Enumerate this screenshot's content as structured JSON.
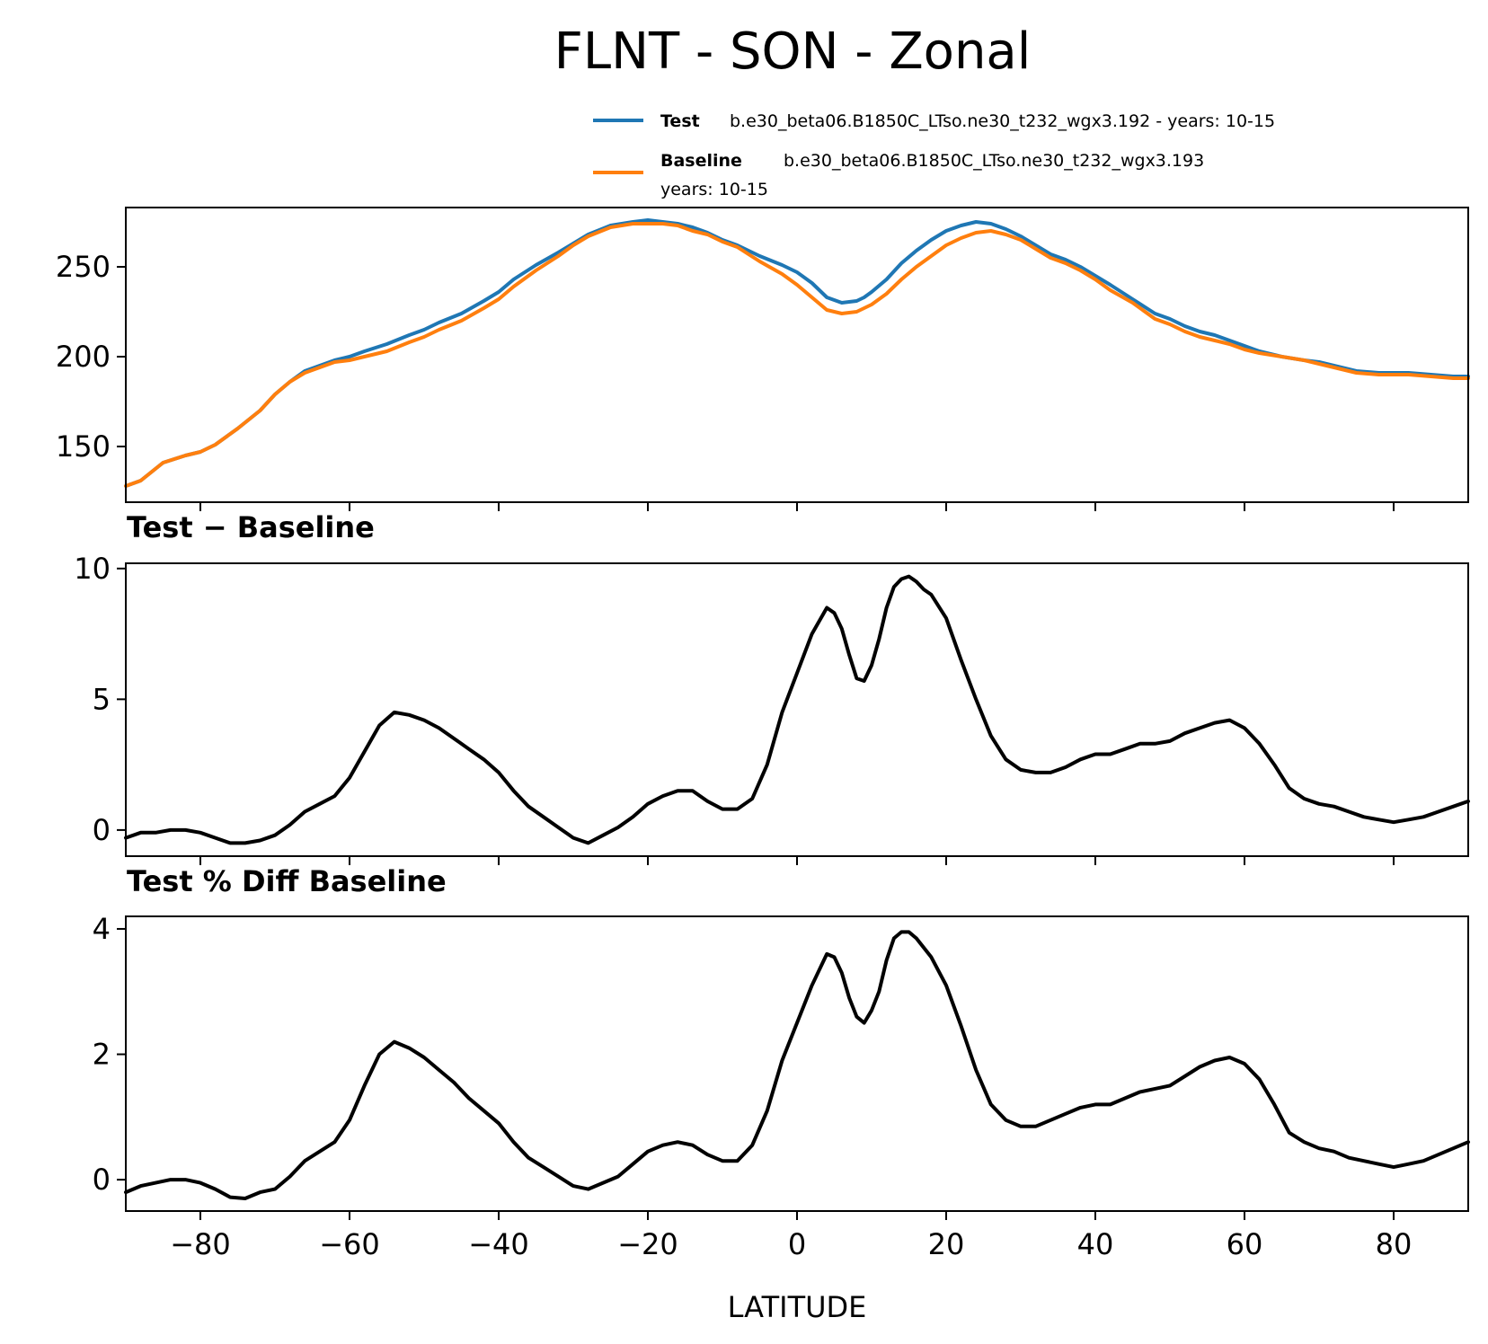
{
  "figure": {
    "title": "FLNT - SON - Zonal",
    "xlabel": "LATITUDE"
  },
  "legend": {
    "test_label": "Test",
    "test_text": "b.e30_beta06.B1850C_LTso.ne30_t232_wgx3.192 - years: 10-15",
    "baseline_label": "Baseline",
    "baseline_text_line1": "b.e30_beta06.B1850C_LTso.ne30_t232_wgx3.193",
    "baseline_text_line2": "years: 10-15"
  },
  "colors": {
    "test": "#1f77b4",
    "baseline": "#ff7f0e",
    "diff": "#000000"
  },
  "chart_data": [
    {
      "type": "line",
      "title": "",
      "xlabel": "",
      "ylabel": "",
      "xlim": [
        -90,
        90
      ],
      "ylim": [
        119,
        283
      ],
      "yticks": [
        150,
        200,
        250
      ],
      "xticks": [
        -80,
        -60,
        -40,
        -20,
        0,
        20,
        40,
        60,
        80
      ],
      "x": [
        -90,
        -88,
        -85,
        -82,
        -80,
        -78,
        -75,
        -72,
        -70,
        -68,
        -66,
        -64,
        -62,
        -60,
        -58,
        -55,
        -52,
        -50,
        -48,
        -45,
        -42,
        -40,
        -38,
        -35,
        -32,
        -30,
        -28,
        -25,
        -22,
        -20,
        -18,
        -16,
        -14,
        -12,
        -10,
        -8,
        -5,
        -2,
        0,
        2,
        4,
        6,
        8,
        9,
        10,
        12,
        14,
        16,
        18,
        20,
        22,
        24,
        26,
        28,
        30,
        32,
        34,
        36,
        38,
        40,
        42,
        45,
        48,
        50,
        52,
        54,
        56,
        58,
        60,
        62,
        65,
        68,
        70,
        72,
        75,
        78,
        80,
        82,
        85,
        88,
        90
      ],
      "series": [
        {
          "name": "Test",
          "color": "#1f77b4",
          "values": [
            128,
            131,
            141,
            145,
            147,
            151,
            160,
            170,
            179,
            186,
            192,
            195,
            198,
            200,
            203,
            207,
            212,
            215,
            219,
            224,
            231,
            236,
            243,
            251,
            258,
            263,
            268,
            273,
            275,
            276,
            275,
            274,
            272,
            269,
            265,
            262,
            256,
            251,
            247,
            241,
            233,
            230,
            231,
            233,
            236,
            243,
            252,
            259,
            265,
            270,
            273,
            275,
            274,
            271,
            267,
            262,
            257,
            254,
            250,
            245,
            240,
            232,
            224,
            221,
            217,
            214,
            212,
            209,
            206,
            203,
            200,
            198,
            197,
            195,
            192,
            191,
            191,
            191,
            190,
            189,
            189
          ]
        },
        {
          "name": "Baseline",
          "color": "#ff7f0e",
          "values": [
            128,
            131,
            141,
            145,
            147,
            151,
            160,
            170,
            179,
            186,
            191,
            194,
            197,
            198,
            200,
            203,
            208,
            211,
            215,
            220,
            227,
            232,
            239,
            248,
            256,
            262,
            267,
            272,
            274,
            274,
            274,
            273,
            270,
            268,
            264,
            261,
            253,
            246,
            240,
            233,
            226,
            224,
            225,
            227,
            229,
            235,
            243,
            250,
            256,
            262,
            266,
            269,
            270,
            268,
            265,
            260,
            255,
            252,
            248,
            243,
            237,
            230,
            221,
            218,
            214,
            211,
            209,
            207,
            204,
            202,
            200,
            198,
            196,
            194,
            191,
            190,
            190,
            190,
            189,
            188,
            188
          ]
        }
      ]
    },
    {
      "type": "line",
      "title": "Test − Baseline",
      "xlabel": "",
      "ylabel": "",
      "xlim": [
        -90,
        90
      ],
      "ylim": [
        -1,
        10.2
      ],
      "yticks": [
        0,
        5,
        10
      ],
      "xticks": [
        -80,
        -60,
        -40,
        -20,
        0,
        20,
        40,
        60,
        80
      ],
      "x": [
        -90,
        -88,
        -86,
        -84,
        -82,
        -80,
        -78,
        -76,
        -74,
        -72,
        -70,
        -68,
        -66,
        -64,
        -62,
        -60,
        -58,
        -56,
        -54,
        -52,
        -50,
        -48,
        -46,
        -44,
        -42,
        -40,
        -38,
        -36,
        -34,
        -32,
        -30,
        -28,
        -26,
        -24,
        -22,
        -20,
        -18,
        -16,
        -14,
        -12,
        -10,
        -8,
        -6,
        -4,
        -2,
        0,
        2,
        4,
        5,
        6,
        7,
        8,
        9,
        10,
        11,
        12,
        13,
        14,
        15,
        16,
        17,
        18,
        20,
        22,
        24,
        26,
        28,
        30,
        32,
        34,
        36,
        38,
        40,
        42,
        44,
        46,
        48,
        50,
        52,
        54,
        56,
        58,
        60,
        62,
        64,
        66,
        68,
        70,
        72,
        74,
        76,
        78,
        80,
        82,
        84,
        86,
        88,
        90
      ],
      "series": [
        {
          "name": "Test − Baseline",
          "color": "#000000",
          "values": [
            -0.3,
            -0.1,
            -0.1,
            0.0,
            0.0,
            -0.1,
            -0.3,
            -0.5,
            -0.5,
            -0.4,
            -0.2,
            0.2,
            0.7,
            1.0,
            1.3,
            2.0,
            3.0,
            4.0,
            4.5,
            4.4,
            4.2,
            3.9,
            3.5,
            3.1,
            2.7,
            2.2,
            1.5,
            0.9,
            0.5,
            0.1,
            -0.3,
            -0.5,
            -0.2,
            0.1,
            0.5,
            1.0,
            1.3,
            1.5,
            1.5,
            1.1,
            0.8,
            0.8,
            1.2,
            2.5,
            4.5,
            6.0,
            7.5,
            8.5,
            8.3,
            7.7,
            6.7,
            5.8,
            5.7,
            6.3,
            7.3,
            8.5,
            9.3,
            9.6,
            9.7,
            9.5,
            9.2,
            9.0,
            8.1,
            6.5,
            5.0,
            3.6,
            2.7,
            2.3,
            2.2,
            2.2,
            2.4,
            2.7,
            2.9,
            2.9,
            3.1,
            3.3,
            3.3,
            3.4,
            3.7,
            3.9,
            4.1,
            4.2,
            3.9,
            3.3,
            2.5,
            1.6,
            1.2,
            1.0,
            0.9,
            0.7,
            0.5,
            0.4,
            0.3,
            0.4,
            0.5,
            0.7,
            0.9,
            1.1
          ]
        }
      ]
    },
    {
      "type": "line",
      "title": "Test % Diff Baseline",
      "xlabel": "LATITUDE",
      "ylabel": "",
      "xlim": [
        -90,
        90
      ],
      "ylim": [
        -0.5,
        4.2
      ],
      "yticks": [
        0,
        2,
        4
      ],
      "xticks": [
        -80,
        -60,
        -40,
        -20,
        0,
        20,
        40,
        60,
        80
      ],
      "x": [
        -90,
        -88,
        -86,
        -84,
        -82,
        -80,
        -78,
        -76,
        -74,
        -72,
        -70,
        -68,
        -66,
        -64,
        -62,
        -60,
        -58,
        -56,
        -54,
        -52,
        -50,
        -48,
        -46,
        -44,
        -42,
        -40,
        -38,
        -36,
        -34,
        -32,
        -30,
        -28,
        -26,
        -24,
        -22,
        -20,
        -18,
        -16,
        -14,
        -12,
        -10,
        -8,
        -6,
        -4,
        -2,
        0,
        2,
        4,
        5,
        6,
        7,
        8,
        9,
        10,
        11,
        12,
        13,
        14,
        15,
        16,
        17,
        18,
        20,
        22,
        24,
        26,
        28,
        30,
        32,
        34,
        36,
        38,
        40,
        42,
        44,
        46,
        48,
        50,
        52,
        54,
        56,
        58,
        60,
        62,
        64,
        66,
        68,
        70,
        72,
        74,
        76,
        78,
        80,
        82,
        84,
        86,
        88,
        90
      ],
      "series": [
        {
          "name": "Test % Diff Baseline",
          "color": "#000000",
          "values": [
            -0.2,
            -0.1,
            -0.05,
            0.0,
            0.0,
            -0.05,
            -0.15,
            -0.28,
            -0.3,
            -0.2,
            -0.15,
            0.05,
            0.3,
            0.45,
            0.6,
            0.95,
            1.5,
            2.0,
            2.2,
            2.1,
            1.95,
            1.75,
            1.55,
            1.3,
            1.1,
            0.9,
            0.6,
            0.35,
            0.2,
            0.05,
            -0.1,
            -0.15,
            -0.05,
            0.05,
            0.25,
            0.45,
            0.55,
            0.6,
            0.55,
            0.4,
            0.3,
            0.3,
            0.55,
            1.1,
            1.9,
            2.5,
            3.1,
            3.6,
            3.55,
            3.3,
            2.9,
            2.6,
            2.5,
            2.7,
            3.0,
            3.5,
            3.85,
            3.95,
            3.95,
            3.85,
            3.7,
            3.55,
            3.1,
            2.45,
            1.75,
            1.2,
            0.95,
            0.85,
            0.85,
            0.95,
            1.05,
            1.15,
            1.2,
            1.2,
            1.3,
            1.4,
            1.45,
            1.5,
            1.65,
            1.8,
            1.9,
            1.95,
            1.85,
            1.6,
            1.2,
            0.75,
            0.6,
            0.5,
            0.45,
            0.35,
            0.3,
            0.25,
            0.2,
            0.25,
            0.3,
            0.4,
            0.5,
            0.6
          ]
        }
      ]
    }
  ]
}
